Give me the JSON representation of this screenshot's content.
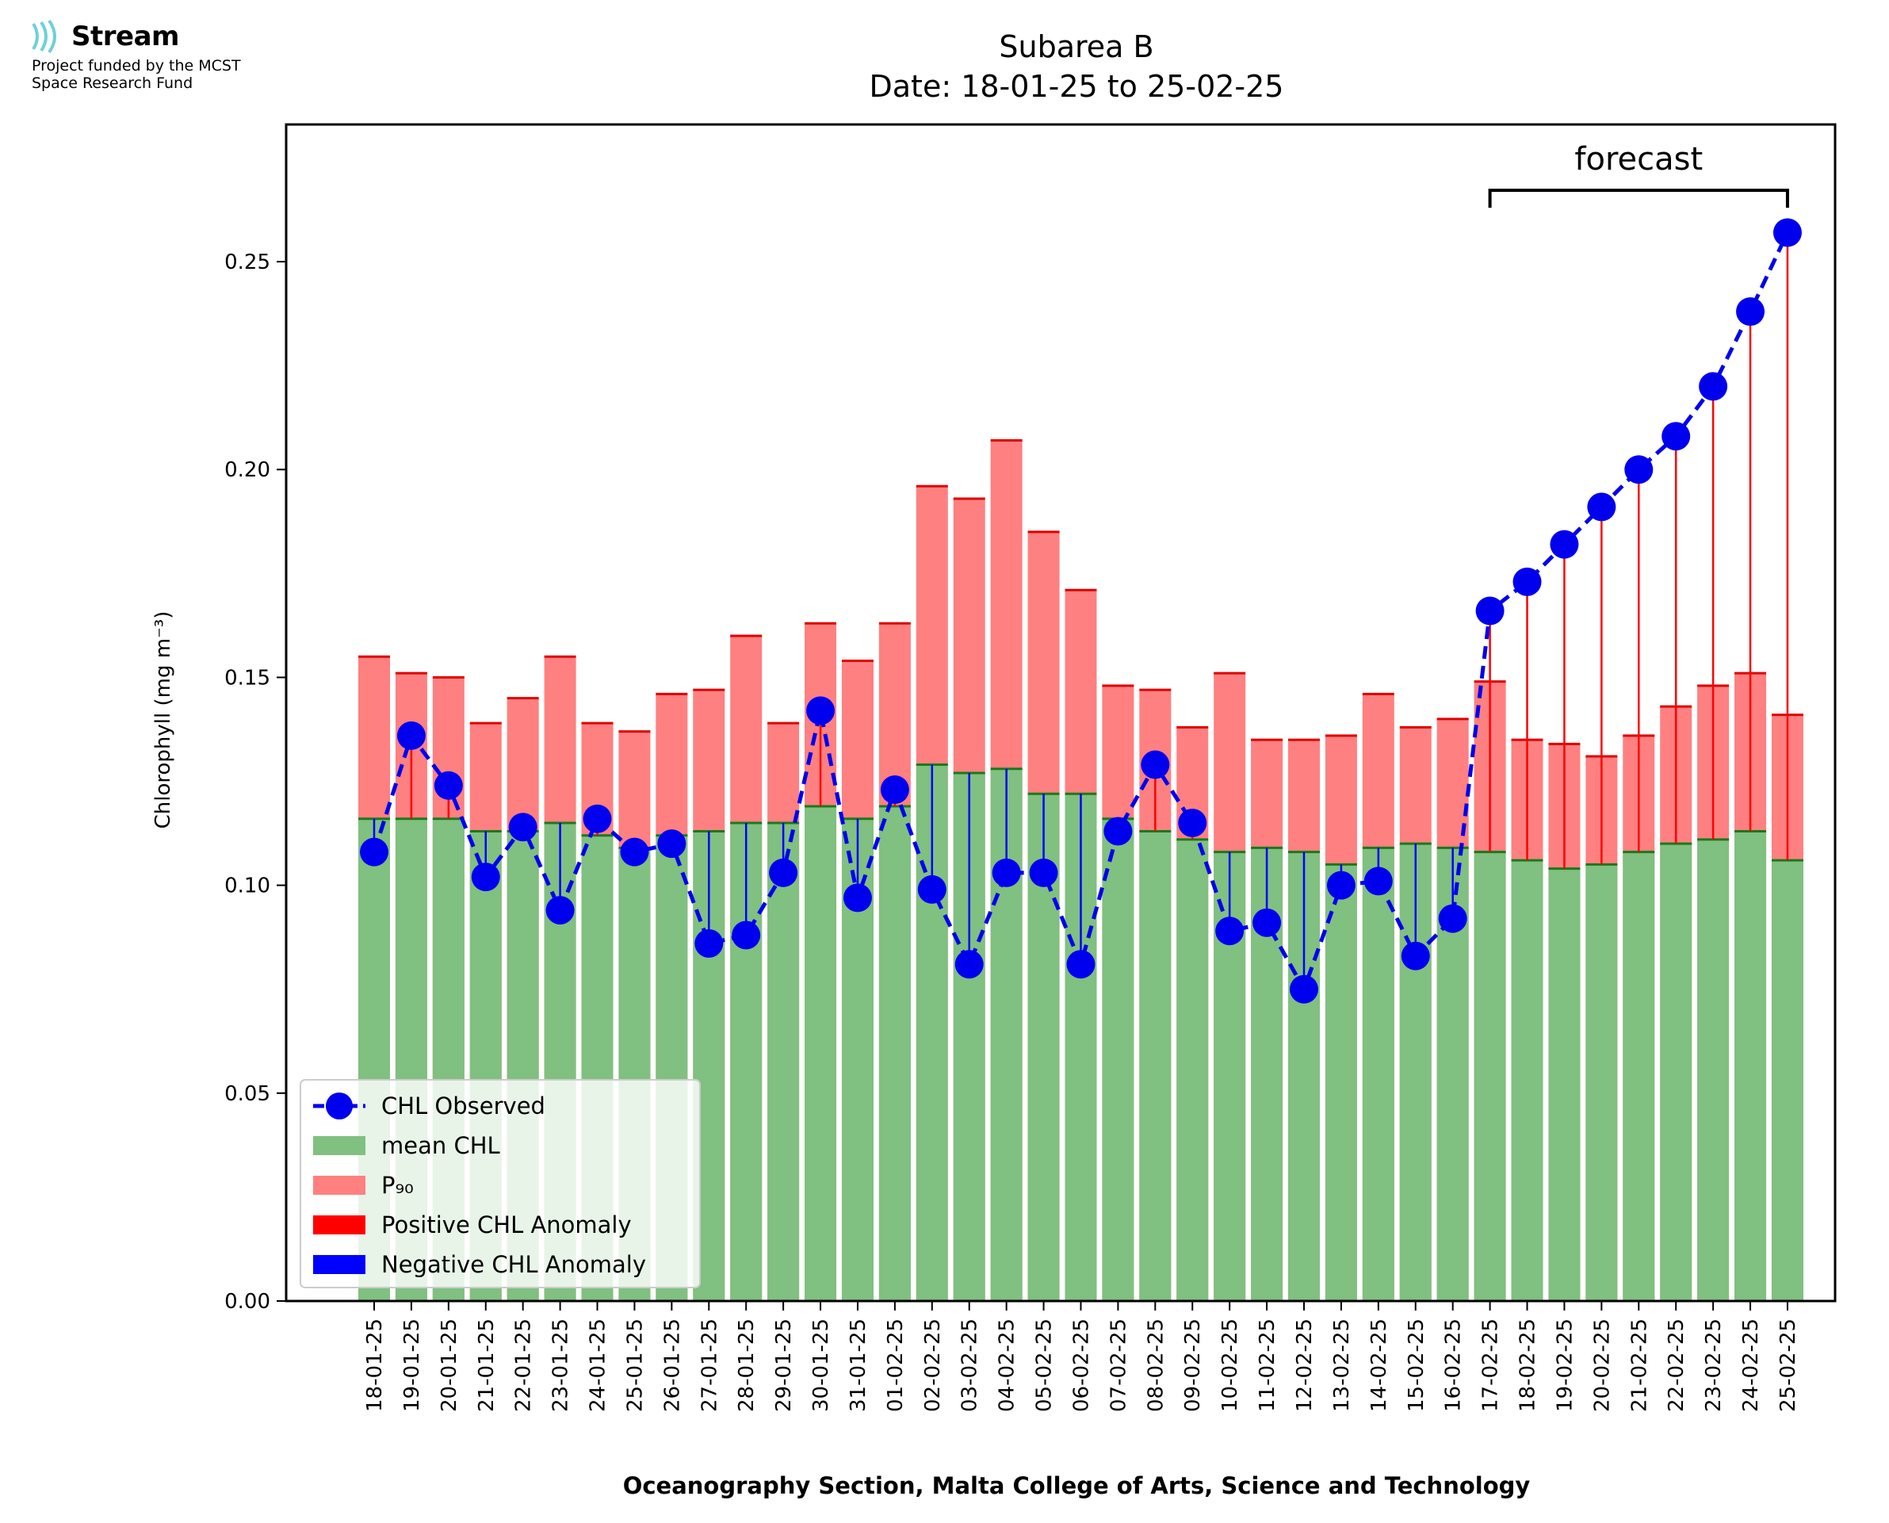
{
  "logo": {
    "name": "Stream",
    "line1": "Project funded by the MCST",
    "line2": "Space Research Fund",
    "icon": "stream-waves-icon"
  },
  "chart_data": {
    "type": "bar",
    "title": "Subarea B",
    "subtitle": "Date: 18-01-25 to 25-02-25",
    "xlabel": "Oceanography Section, Malta College of Arts, Science and Technology",
    "ylabel": "Chlorophyll (mg m⁻³)",
    "ylim": [
      0,
      0.283
    ],
    "yticks": [
      "0.00",
      "0.05",
      "0.10",
      "0.15",
      "0.20",
      "0.25"
    ],
    "grid": false,
    "legend_position": "bottom-left",
    "forecast_label": "forecast",
    "forecast_range": [
      "17-02-25",
      "25-02-25"
    ],
    "colors": {
      "mean": "#80c080",
      "mean_edge": "#1a7a1a",
      "p90": "#ff8080",
      "p90_edge": "#e00000",
      "observed": "#0000ee",
      "positive": "#ff0000",
      "negative": "#0000ff"
    },
    "categories": [
      "18-01-25",
      "19-01-25",
      "20-01-25",
      "21-01-25",
      "22-01-25",
      "23-01-25",
      "24-01-25",
      "25-01-25",
      "26-01-25",
      "27-01-25",
      "28-01-25",
      "29-01-25",
      "30-01-25",
      "31-01-25",
      "01-02-25",
      "02-02-25",
      "03-02-25",
      "04-02-25",
      "05-02-25",
      "06-02-25",
      "07-02-25",
      "08-02-25",
      "09-02-25",
      "10-02-25",
      "11-02-25",
      "12-02-25",
      "13-02-25",
      "14-02-25",
      "15-02-25",
      "16-02-25",
      "17-02-25",
      "18-02-25",
      "19-02-25",
      "20-02-25",
      "21-02-25",
      "22-02-25",
      "23-02-25",
      "24-02-25",
      "25-02-25"
    ],
    "series": [
      {
        "name": "CHL Observed",
        "kind": "line",
        "values": [
          0.108,
          0.136,
          0.124,
          0.102,
          0.114,
          0.094,
          0.116,
          0.108,
          0.11,
          0.086,
          0.088,
          0.103,
          0.142,
          0.097,
          0.123,
          0.099,
          0.081,
          0.103,
          0.103,
          0.081,
          0.113,
          0.129,
          0.115,
          0.089,
          0.091,
          0.075,
          0.1,
          0.101,
          0.083,
          0.092,
          0.166,
          0.173,
          0.182,
          0.191,
          0.2,
          0.208,
          0.22,
          0.238,
          0.257
        ]
      },
      {
        "name": "mean CHL",
        "kind": "bar",
        "values": [
          0.116,
          0.116,
          0.116,
          0.113,
          0.113,
          0.115,
          0.112,
          0.109,
          0.112,
          0.113,
          0.115,
          0.115,
          0.119,
          0.116,
          0.119,
          0.129,
          0.127,
          0.128,
          0.122,
          0.122,
          0.116,
          0.113,
          0.111,
          0.108,
          0.109,
          0.108,
          0.105,
          0.109,
          0.11,
          0.109,
          0.108,
          0.106,
          0.104,
          0.105,
          0.108,
          0.11,
          0.111,
          0.113,
          0.106
        ]
      },
      {
        "name": "P₉₀",
        "kind": "bar",
        "values": [
          0.155,
          0.151,
          0.15,
          0.139,
          0.145,
          0.155,
          0.139,
          0.137,
          0.146,
          0.147,
          0.16,
          0.139,
          0.163,
          0.154,
          0.163,
          0.196,
          0.193,
          0.207,
          0.185,
          0.171,
          0.148,
          0.147,
          0.138,
          0.151,
          0.135,
          0.135,
          0.136,
          0.146,
          0.138,
          0.14,
          0.149,
          0.135,
          0.134,
          0.131,
          0.136,
          0.143,
          0.148,
          0.151,
          0.141
        ]
      },
      {
        "name": "Positive CHL Anomaly",
        "kind": "legend-only"
      },
      {
        "name": "Negative CHL Anomaly",
        "kind": "legend-only"
      }
    ]
  }
}
